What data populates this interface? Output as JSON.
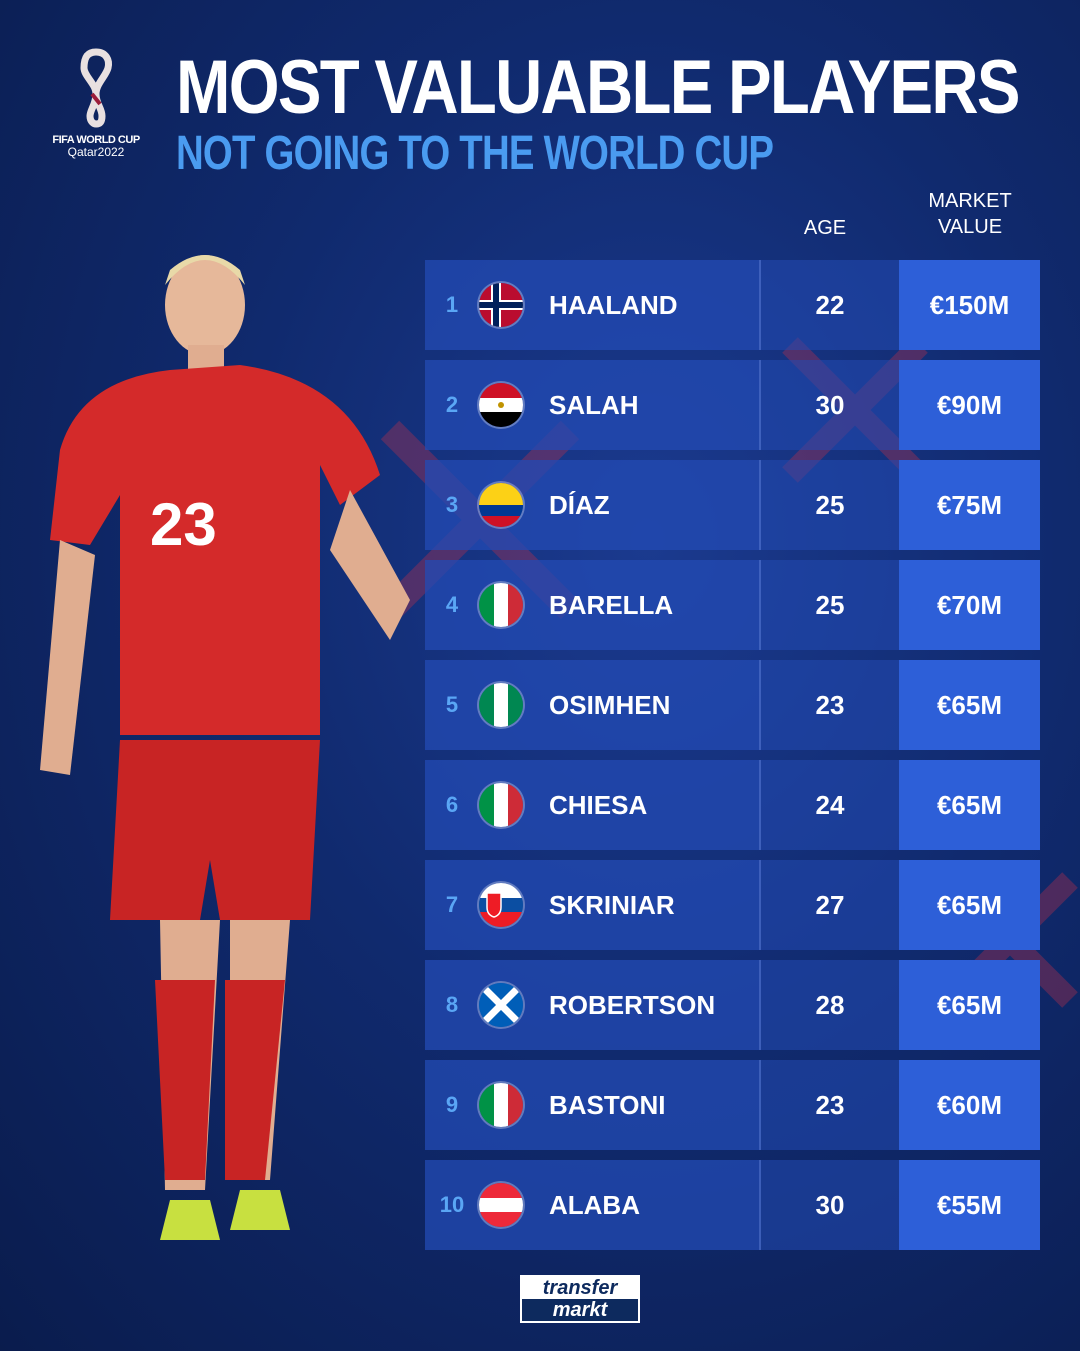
{
  "logo": {
    "line1": "FIFA WORLD CUP",
    "line2": "Qatar2022"
  },
  "title": "MOST VALUABLE PLAYERS",
  "subtitle": "NOT GOING TO THE WORLD CUP",
  "headers": {
    "age": "AGE",
    "market_value_1": "MARKET",
    "market_value_2": "VALUE"
  },
  "rows": [
    {
      "rank": "1",
      "flag": "norway",
      "name": "HAALAND",
      "age": "22",
      "value": "€150M"
    },
    {
      "rank": "2",
      "flag": "egypt",
      "name": "SALAH",
      "age": "30",
      "value": "€90M"
    },
    {
      "rank": "3",
      "flag": "colombia",
      "name": "DÍAZ",
      "age": "25",
      "value": "€75M"
    },
    {
      "rank": "4",
      "flag": "italy",
      "name": "BARELLA",
      "age": "25",
      "value": "€70M"
    },
    {
      "rank": "5",
      "flag": "nigeria",
      "name": "OSIMHEN",
      "age": "23",
      "value": "€65M"
    },
    {
      "rank": "6",
      "flag": "italy",
      "name": "CHIESA",
      "age": "24",
      "value": "€65M"
    },
    {
      "rank": "7",
      "flag": "slovakia",
      "name": "SKRINIAR",
      "age": "27",
      "value": "€65M"
    },
    {
      "rank": "8",
      "flag": "scotland",
      "name": "ROBERTSON",
      "age": "28",
      "value": "€65M"
    },
    {
      "rank": "9",
      "flag": "italy",
      "name": "BASTONI",
      "age": "23",
      "value": "€60M"
    },
    {
      "rank": "10",
      "flag": "austria",
      "name": "ALABA",
      "age": "30",
      "value": "€55M"
    }
  ],
  "player": {
    "shirt_number": "23"
  },
  "footer": {
    "logo_line1": "transfer",
    "logo_line2": "markt"
  },
  "colors": {
    "accent": "#4a9bf0",
    "value_cell": "#2d5fd8",
    "shirt": "#d42a2a"
  }
}
